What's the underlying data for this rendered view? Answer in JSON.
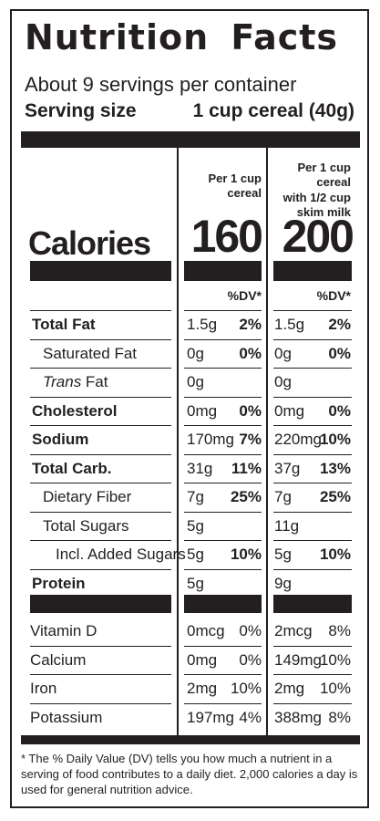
{
  "label": {
    "title": "Nutrition Facts",
    "servings": "About 9 servings per container",
    "serving_size_label": "Serving size",
    "serving_size_value": "1 cup cereal (40g)"
  },
  "columns": {
    "col1_head": [
      "Per 1 cup",
      "cereal"
    ],
    "col2_head": [
      "Per 1 cup cereal",
      "with 1/2 cup",
      "skim milk"
    ],
    "calories_label": "Calories",
    "col1_calories": "160",
    "col2_calories": "200",
    "dv_head": "%DV*"
  },
  "nutrients": [
    {
      "label": "Total Fat",
      "style": "bold",
      "c1": "1.5g",
      "p1": "2%",
      "c2": "1.5g",
      "p2": "2%"
    },
    {
      "label": "Saturated Fat",
      "style": "indent",
      "c1": "0g",
      "p1": "0%",
      "c2": "0g",
      "p2": "0%"
    },
    {
      "label_italic": "Trans",
      "label_rest": " Fat",
      "style": "indent-trans",
      "c1": "0g",
      "p1": "",
      "c2": "0g",
      "p2": ""
    },
    {
      "label": "Cholesterol",
      "style": "bold",
      "c1": "0mg",
      "p1": "0%",
      "c2": "0mg",
      "p2": "0%"
    },
    {
      "label": "Sodium",
      "style": "bold",
      "c1": "170mg",
      "p1": "7%",
      "c2": "220mg",
      "p2": "10%"
    },
    {
      "label": "Total Carb.",
      "style": "bold",
      "c1": "31g",
      "p1": "11%",
      "c2": "37g",
      "p2": "13%"
    },
    {
      "label": "Dietary Fiber",
      "style": "indent",
      "c1": "7g",
      "p1": "25%",
      "c2": "7g",
      "p2": "25%"
    },
    {
      "label": "Total Sugars",
      "style": "indent",
      "c1": "5g",
      "p1": "",
      "c2": "11g",
      "p2": ""
    },
    {
      "label": "Incl. Added Sugars",
      "style": "indent2",
      "c1": "5g",
      "p1": "10%",
      "c2": "5g",
      "p2": "10%"
    },
    {
      "label": "Protein",
      "style": "bold",
      "c1": "5g",
      "p1": "",
      "c2": "9g",
      "p2": ""
    }
  ],
  "vitamins": [
    {
      "label": "Vitamin D",
      "c1": "0mcg",
      "p1": "0%",
      "c2": "2mcg",
      "p2": "8%"
    },
    {
      "label": "Calcium",
      "c1": "0mg",
      "p1": "0%",
      "c2": "149mg",
      "p2": "10%"
    },
    {
      "label": "Iron",
      "c1": "2mg",
      "p1": "10%",
      "c2": "2mg",
      "p2": "10%"
    },
    {
      "label": "Potassium",
      "c1": "197mg",
      "p1": "4%",
      "c2": "388mg",
      "p2": "8%"
    }
  ],
  "footnote": "* The % Daily Value (DV) tells you how much a nutrient in a serving of food contributes to a daily diet. 2,000 calories a day is used for general nutrition advice."
}
